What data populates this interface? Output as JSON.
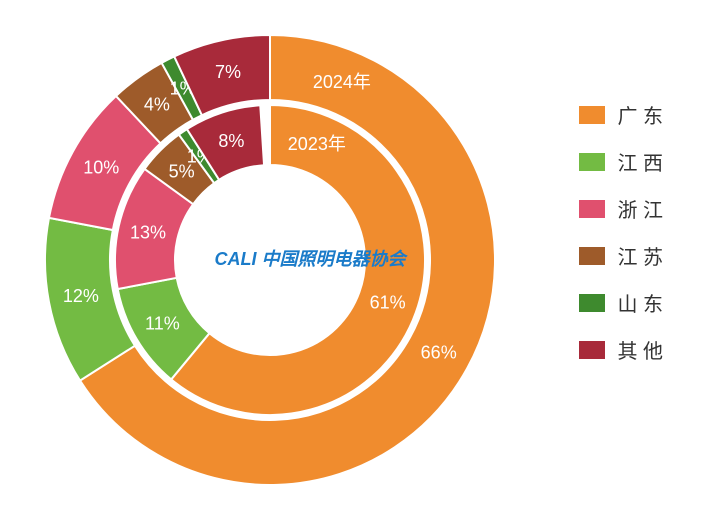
{
  "chart": {
    "type": "nested-donut",
    "center_label": "中国照明电器协会",
    "center_logo_prefix": "CALI",
    "center_color": "#1a7bc9",
    "background_color": "#ffffff",
    "outer_ring": {
      "label": "2024年",
      "slices": [
        {
          "name": "广东",
          "value": 66,
          "color": "#f08c2e"
        },
        {
          "name": "江西",
          "value": 12,
          "color": "#73bb43"
        },
        {
          "name": "浙江",
          "value": 10,
          "color": "#e0506e"
        },
        {
          "name": "江苏",
          "value": 4,
          "color": "#9e5b2a"
        },
        {
          "name": "山东",
          "value": 1,
          "color": "#3e8a2e"
        },
        {
          "name": "其他",
          "value": 7,
          "color": "#a82a3a"
        }
      ]
    },
    "inner_ring": {
      "label": "2023年",
      "slices": [
        {
          "name": "广东",
          "value": 61,
          "color": "#f08c2e"
        },
        {
          "name": "江西",
          "value": 11,
          "color": "#73bb43"
        },
        {
          "name": "浙江",
          "value": 13,
          "color": "#e0506e"
        },
        {
          "name": "江苏",
          "value": 5,
          "color": "#9e5b2a"
        },
        {
          "name": "山东",
          "value": 1,
          "color": "#3e8a2e"
        },
        {
          "name": "其他",
          "value": 8,
          "color": "#a82a3a"
        }
      ]
    },
    "label_fontsize": 18,
    "label_color": "#ffffff",
    "start_angle_deg": -90,
    "stroke_color": "#ffffff",
    "stroke_width": 2
  },
  "legend": {
    "items": [
      {
        "name": "广东",
        "display": "广 东",
        "color": "#f08c2e"
      },
      {
        "name": "江西",
        "display": "江 西",
        "color": "#73bb43"
      },
      {
        "name": "浙江",
        "display": "浙 江",
        "color": "#e0506e"
      },
      {
        "name": "江苏",
        "display": "江 苏",
        "color": "#9e5b2a"
      },
      {
        "name": "山东",
        "display": "山 东",
        "color": "#3e8a2e"
      },
      {
        "name": "其他",
        "display": "其 他",
        "color": "#a82a3a"
      }
    ],
    "fontsize": 20
  }
}
